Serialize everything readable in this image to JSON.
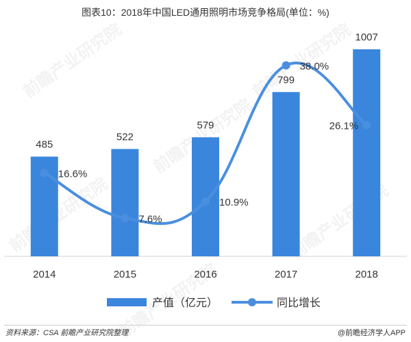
{
  "title": "图表10：2018年中国LED通用照明市场竞争格局(单位：%)",
  "source": "资料来源：CSA 前瞻产业研究院整理",
  "credit": "@前瞻经济学人APP",
  "watermark": "前瞻产业研究院",
  "colors": {
    "bar": "#3b86dd",
    "line": "#4a8fdf",
    "axis": "#d0d0d0",
    "text": "#333333"
  },
  "chart_data": {
    "type": "bar+line",
    "categories": [
      "2014",
      "2015",
      "2016",
      "2017",
      "2018"
    ],
    "series": [
      {
        "name": "产值（亿元）",
        "type": "bar",
        "values": [
          485,
          522,
          579,
          799,
          1007
        ],
        "labels": [
          "485",
          "522",
          "579",
          "799",
          "1007"
        ]
      },
      {
        "name": "同比增长",
        "type": "line",
        "values": [
          16.6,
          7.6,
          10.9,
          38.0,
          26.1
        ],
        "labels": [
          "16.6%",
          "7.6%",
          "10.9%",
          "38.0%",
          "26.1%"
        ]
      }
    ],
    "bar_ylim": [
      0,
      1100
    ],
    "line_ylim": [
      0,
      45
    ],
    "legend_position": "bottom",
    "grid": false
  }
}
